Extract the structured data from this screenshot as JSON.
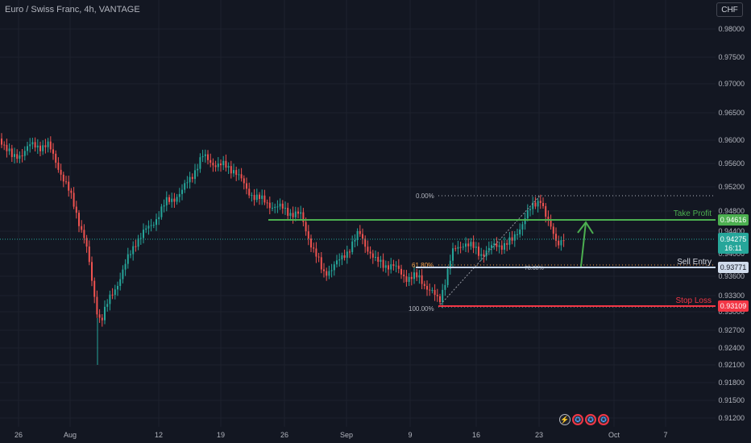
{
  "header": {
    "title": "Euro / Swiss Franc, 4h, VANTAGE",
    "currency_button": "CHF"
  },
  "price_axis": {
    "ticks": [
      "0.98000",
      "0.97500",
      "0.97000",
      "0.96500",
      "0.96000",
      "0.95600",
      "0.95200",
      "0.94800",
      "0.94400",
      "0.94000",
      "0.93600",
      "0.93300",
      "0.93000",
      "0.92700",
      "0.92400",
      "0.92100",
      "0.91800",
      "0.91500",
      "0.91200"
    ],
    "last_price": "0.94275",
    "countdown": "16:11"
  },
  "time_axis": {
    "ticks": [
      "26",
      "Aug",
      "12",
      "19",
      "26",
      "Sep",
      "9",
      "16",
      "23",
      "Oct",
      "7"
    ]
  },
  "levels": {
    "take_profit": {
      "label": "Take Profit",
      "price": "0.94616",
      "color": "#4caf50"
    },
    "sell_entry": {
      "label": "Sell Entry",
      "price": "0.93771",
      "color": "#b2c9e6"
    },
    "stop_loss": {
      "label": "Stop Loss",
      "price": "0.93109",
      "color": "#f23645"
    }
  },
  "fibonacci": {
    "level_0": "0.00%",
    "level_618": "61.80%",
    "level_786": "78.60%",
    "level_100": "100.00%"
  },
  "colors": {
    "up": "#26a69a",
    "down": "#ef5350",
    "background": "#131722",
    "grid": "#1e222d"
  },
  "events": [
    {
      "icon": "flash-icon",
      "glyph": "⚡"
    },
    {
      "icon": "eu-flag-icon",
      "glyph": "✪"
    },
    {
      "icon": "eu-flag-icon",
      "glyph": "✪"
    },
    {
      "icon": "eu-flag-icon",
      "glyph": "✪"
    }
  ]
}
